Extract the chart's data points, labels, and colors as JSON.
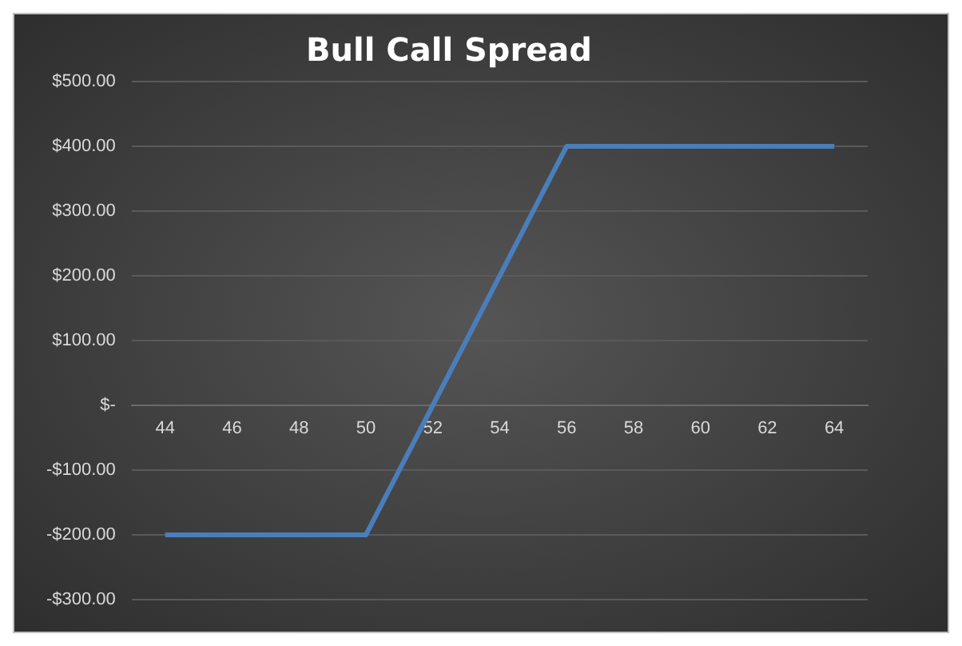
{
  "chart_data": {
    "type": "line",
    "title": "Bull Call Spread",
    "categories": [
      "44",
      "46",
      "48",
      "50",
      "52",
      "54",
      "56",
      "58",
      "60",
      "62",
      "64"
    ],
    "series": [
      {
        "color": "#4a7ebb",
        "values": [
          -200,
          -200,
          -200,
          -200,
          0,
          200,
          400,
          400,
          400,
          400,
          400
        ]
      }
    ],
    "ylim": [
      -300,
      500
    ],
    "yticks": [
      {
        "value": -300,
        "label": "-$300.00"
      },
      {
        "value": -200,
        "label": "-$200.00"
      },
      {
        "value": -100,
        "label": "-$100.00"
      },
      {
        "value": 0,
        "label": "$-"
      },
      {
        "value": 100,
        "label": "$100.00"
      },
      {
        "value": 200,
        "label": "$200.00"
      },
      {
        "value": 300,
        "label": "$300.00"
      },
      {
        "value": 400,
        "label": "$400.00"
      },
      {
        "value": 500,
        "label": "$500.00"
      }
    ],
    "grid": "y",
    "legend": false,
    "marker": "none",
    "line_style": "solid"
  }
}
